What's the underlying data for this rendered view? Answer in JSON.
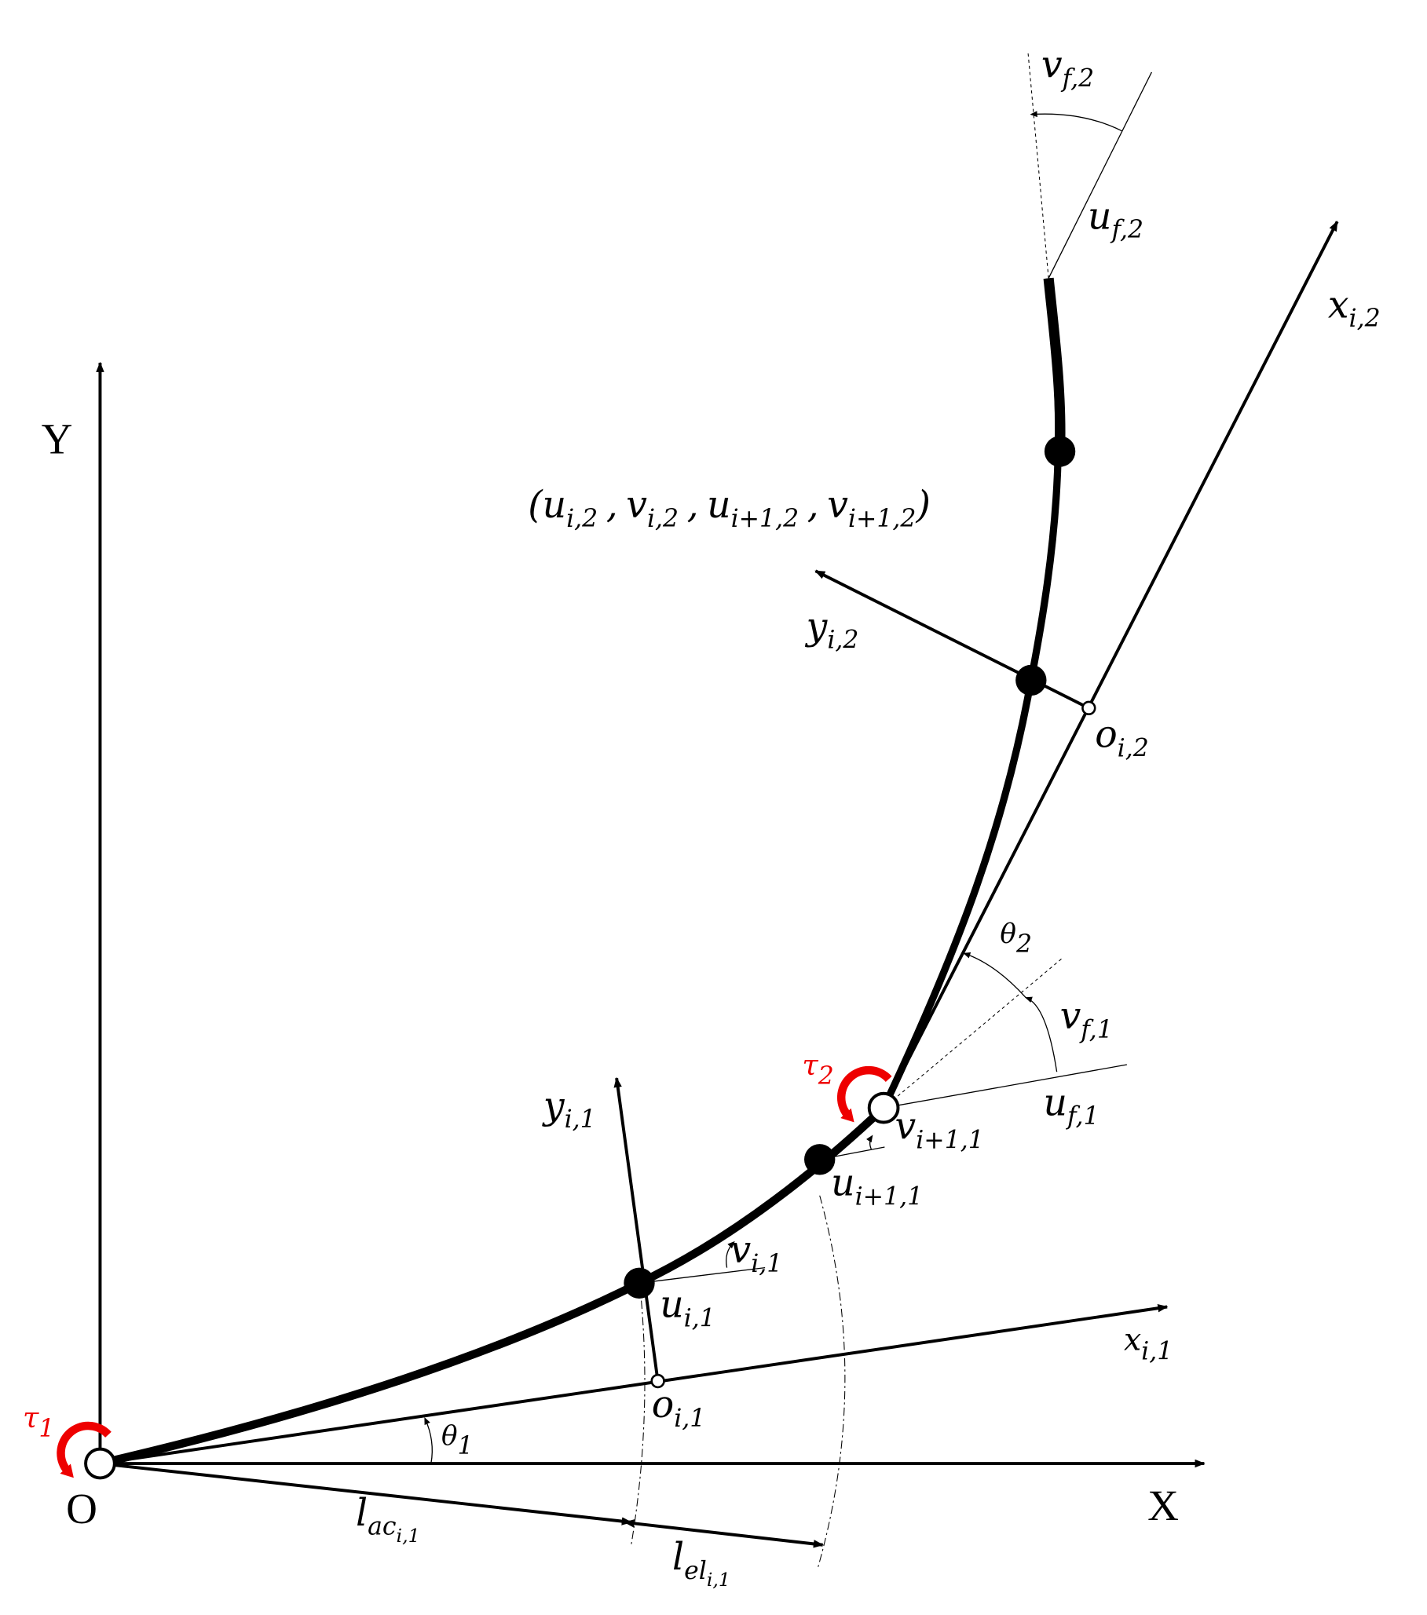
{
  "axes": {
    "y": "Y",
    "x": "X",
    "origin": "O"
  },
  "torques": {
    "t1": {
      "base": "τ",
      "sub": "1"
    },
    "t2": {
      "base": "τ",
      "sub": "2"
    }
  },
  "labels": {
    "v_f2": {
      "base": "v",
      "sub": "f,2"
    },
    "u_f2": {
      "base": "u",
      "sub": "f,2"
    },
    "x_i2": {
      "base": "x",
      "sub": "i,2"
    },
    "y_i2": {
      "base": "y",
      "sub": "i,2"
    },
    "o_i2": {
      "base": "o",
      "sub": "i,2"
    },
    "theta2": {
      "base": "θ",
      "sub": "2"
    },
    "v_f1": {
      "base": "v",
      "sub": "f,1"
    },
    "u_f1": {
      "base": "u",
      "sub": "f,1"
    },
    "v_ip1_1": {
      "base": "v",
      "sub": "i+1,1"
    },
    "u_ip1_1": {
      "base": "u",
      "sub": "i+1,1"
    },
    "y_i1": {
      "base": "y",
      "sub": "i,1"
    },
    "v_i1": {
      "base": "v",
      "sub": "i,1"
    },
    "u_i1": {
      "base": "u",
      "sub": "i,1"
    },
    "x_i1": {
      "base": "x",
      "sub": "i,1"
    },
    "o_i1": {
      "base": "o",
      "sub": "i,1"
    },
    "theta1": {
      "base": "θ",
      "sub": "1"
    },
    "l_ac": {
      "base": "l",
      "sub": "ac",
      "subsub": "i,1"
    },
    "l_el": {
      "base": "l",
      "sub": "el",
      "subsub": "i,1"
    }
  },
  "tuple": {
    "open": "(",
    "close": ")",
    "separator": ",",
    "terms": [
      {
        "base": "u",
        "sub": "i,2"
      },
      {
        "base": "v",
        "sub": "i,2"
      },
      {
        "base": "u",
        "sub": "i+1,2"
      },
      {
        "base": "v",
        "sub": "i+1,2"
      }
    ]
  }
}
